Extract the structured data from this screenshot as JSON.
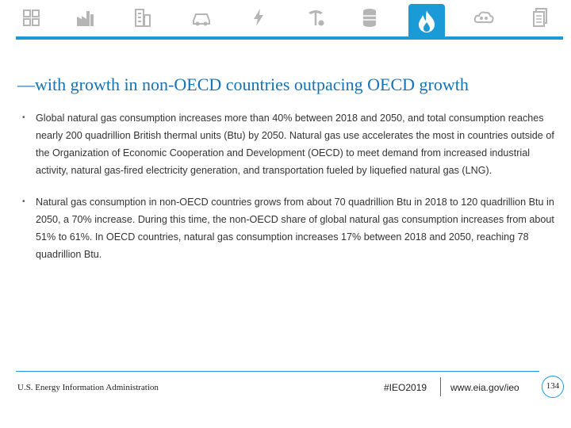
{
  "nav": {
    "icons": [
      "overview-icon",
      "industrial-icon",
      "buildings-icon",
      "transportation-icon",
      "electricity-icon",
      "coal-icon",
      "petroleum-icon",
      "natural-gas-icon",
      "emissions-icon",
      "document-icon"
    ],
    "active": "natural-gas-icon",
    "accent_color": "#1a9ad6"
  },
  "headline": "—with growth in non-OECD countries outpacing OECD growth",
  "bullets": [
    "Global natural gas consumption increases more than 40% between 2018 and 2050, and total consumption reaches nearly 200 quadrillion British thermal units (Btu) by 2050. Natural gas use accelerates the most in countries outside of the Organization of Economic Cooperation and Development (OECD) to meet demand from increased industrial activity, natural gas-fired electricity generation, and transportation fueled by liquefied natural gas (LNG).",
    "Natural gas consumption in non-OECD countries grows from about 70 quadrillion Btu in 2018 to 120 quadrillion Btu in 2050, a 70% increase. During this time, the non-OECD share of global natural gas consumption increases from about 51% to 61%. In OECD countries, natural gas consumption increases 17% between 2018 and 2050, reaching 78 quadrillion Btu."
  ],
  "bullet_marker": "•",
  "footer": {
    "agency": "U.S. Energy Information Administration",
    "hashtag": "#IEO2019",
    "url": "www.eia.gov/ieo",
    "page": "134"
  }
}
